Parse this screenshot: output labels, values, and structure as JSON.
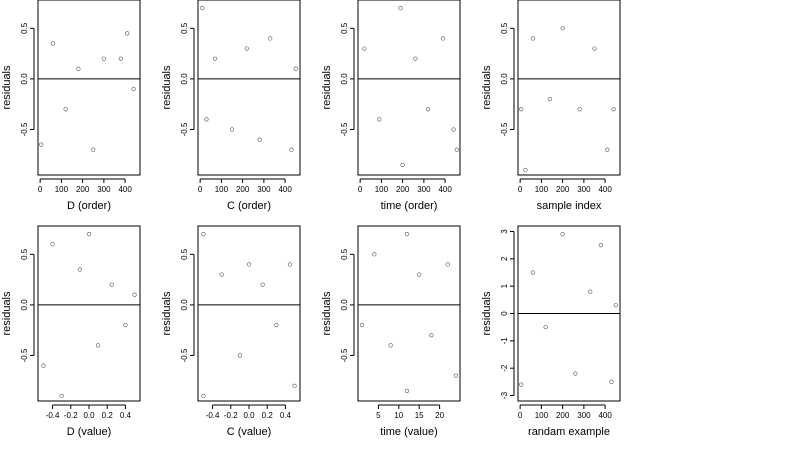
{
  "chart_data": [
    {
      "type": "scatter",
      "xlabel": "D (order)",
      "ylabel": "residuals",
      "xlim": [
        -10,
        470
      ],
      "ylim": [
        -0.95,
        0.78
      ],
      "xticks": [
        0,
        100,
        200,
        300,
        400
      ],
      "xtick_labels": [
        "0",
        "100",
        "200",
        "300",
        "400"
      ],
      "yticks": [
        -0.5,
        0.0,
        0.5
      ],
      "ytick_labels": [
        "-0.5",
        "0.0",
        "0.5"
      ],
      "hline": 0,
      "sample": {
        "x": [
          5,
          60,
          120,
          180,
          250,
          300,
          380,
          410,
          440
        ],
        "y": [
          -0.65,
          0.35,
          -0.3,
          0.1,
          -0.7,
          0.2,
          0.2,
          0.45,
          -0.1
        ]
      }
    },
    {
      "type": "scatter",
      "xlabel": "C (order)",
      "ylabel": "residuals",
      "xlim": [
        -10,
        470
      ],
      "ylim": [
        -0.95,
        0.78
      ],
      "xticks": [
        0,
        100,
        200,
        300,
        400
      ],
      "xtick_labels": [
        "0",
        "100",
        "200",
        "300",
        "400"
      ],
      "yticks": [
        -0.5,
        0.0,
        0.5
      ],
      "ytick_labels": [
        "-0.5",
        "0.0",
        "0.5"
      ],
      "hline": 0,
      "sample": {
        "x": [
          10,
          30,
          70,
          150,
          220,
          280,
          330,
          430,
          450
        ],
        "y": [
          0.7,
          -0.4,
          0.2,
          -0.5,
          0.3,
          -0.6,
          0.4,
          -0.7,
          0.1
        ]
      }
    },
    {
      "type": "scatter",
      "xlabel": "time (order)",
      "ylabel": "residuals",
      "xlim": [
        -10,
        470
      ],
      "ylim": [
        -0.95,
        0.78
      ],
      "xticks": [
        0,
        100,
        200,
        300,
        400
      ],
      "xtick_labels": [
        "0",
        "100",
        "200",
        "300",
        "400"
      ],
      "yticks": [
        -0.5,
        0.0,
        0.5
      ],
      "ytick_labels": [
        "-0.5",
        "0.0",
        "0.5"
      ],
      "hline": 0,
      "sample": {
        "x": [
          20,
          90,
          190,
          200,
          260,
          320,
          390,
          440,
          455
        ],
        "y": [
          0.3,
          -0.4,
          0.7,
          -0.85,
          0.2,
          -0.3,
          0.4,
          -0.5,
          -0.7
        ]
      }
    },
    {
      "type": "scatter",
      "xlabel": "sample index",
      "ylabel": "residuals",
      "xlim": [
        -10,
        470
      ],
      "ylim": [
        -0.95,
        0.78
      ],
      "xticks": [
        0,
        100,
        200,
        300,
        400
      ],
      "xtick_labels": [
        "0",
        "100",
        "200",
        "300",
        "400"
      ],
      "yticks": [
        -0.5,
        0.0,
        0.5
      ],
      "ytick_labels": [
        "-0.5",
        "0.0",
        "0.5"
      ],
      "hline": 0,
      "sample": {
        "x": [
          5,
          25,
          60,
          140,
          200,
          280,
          350,
          410,
          440
        ],
        "y": [
          -0.3,
          -0.9,
          0.4,
          -0.2,
          0.5,
          -0.3,
          0.3,
          -0.7,
          -0.3
        ]
      }
    },
    {
      "type": "scatter",
      "xlabel": "D (value)",
      "ylabel": "residuals",
      "xlim": [
        -0.56,
        0.56
      ],
      "ylim": [
        -0.95,
        0.78
      ],
      "xticks": [
        -0.4,
        -0.2,
        0.0,
        0.2,
        0.4
      ],
      "xtick_labels": [
        "-0.4",
        "-0.2",
        "0.0",
        "0.2",
        "0.4"
      ],
      "yticks": [
        -0.5,
        0.0,
        0.5
      ],
      "ytick_labels": [
        "-0.5",
        "0.0",
        "0.5"
      ],
      "hline": 0,
      "sample": {
        "x": [
          -0.5,
          -0.4,
          -0.3,
          -0.1,
          0.0,
          0.1,
          0.25,
          0.4,
          0.5
        ],
        "y": [
          -0.6,
          0.6,
          -0.9,
          0.35,
          0.7,
          -0.4,
          0.2,
          -0.2,
          0.1
        ]
      }
    },
    {
      "type": "scatter",
      "xlabel": "C (value)",
      "ylabel": "residuals",
      "xlim": [
        -0.56,
        0.56
      ],
      "ylim": [
        -0.95,
        0.78
      ],
      "xticks": [
        -0.4,
        -0.2,
        0.0,
        0.2,
        0.4
      ],
      "xtick_labels": [
        "-0.4",
        "-0.2",
        "0.0",
        "0.2",
        "0.4"
      ],
      "yticks": [
        -0.5,
        0.0,
        0.5
      ],
      "ytick_labels": [
        "-0.5",
        "0.0",
        "0.5"
      ],
      "hline": 0,
      "sample": {
        "x": [
          -0.5,
          -0.5,
          -0.3,
          -0.1,
          0.0,
          0.15,
          0.3,
          0.45,
          0.5
        ],
        "y": [
          0.7,
          -0.9,
          0.3,
          -0.5,
          0.4,
          0.2,
          -0.2,
          0.4,
          -0.8
        ]
      }
    },
    {
      "type": "scatter",
      "xlabel": "time (value)",
      "ylabel": "residuals",
      "xlim": [
        0,
        25
      ],
      "ylim": [
        -0.95,
        0.78
      ],
      "xticks": [
        5,
        10,
        15,
        20
      ],
      "xtick_labels": [
        "5",
        "10",
        "15",
        "20"
      ],
      "yticks": [
        -0.5,
        0.0,
        0.5
      ],
      "ytick_labels": [
        "-0.5",
        "0.0",
        "0.5"
      ],
      "hline": 0,
      "sample": {
        "x": [
          1,
          4,
          8,
          12,
          12,
          15,
          18,
          22,
          24
        ],
        "y": [
          -0.2,
          0.5,
          -0.4,
          0.7,
          -0.85,
          0.3,
          -0.3,
          0.4,
          -0.7
        ]
      }
    },
    {
      "type": "scatter",
      "xlabel": "randam example",
      "ylabel": "residuals",
      "xlim": [
        -10,
        470
      ],
      "ylim": [
        -3.2,
        3.2
      ],
      "xticks": [
        0,
        100,
        200,
        300,
        400
      ],
      "xtick_labels": [
        "0",
        "100",
        "200",
        "300",
        "400"
      ],
      "yticks": [
        -3,
        -2,
        -1,
        0,
        1,
        2,
        3
      ],
      "ytick_labels": [
        "-3",
        "-2",
        "-1",
        "0",
        "1",
        "2",
        "3"
      ],
      "hline": 0,
      "sample": {
        "x": [
          5,
          60,
          120,
          200,
          260,
          330,
          380,
          430,
          450
        ],
        "y": [
          -2.6,
          1.5,
          -0.5,
          2.9,
          -2.2,
          0.8,
          2.5,
          -2.5,
          0.3
        ]
      }
    }
  ]
}
